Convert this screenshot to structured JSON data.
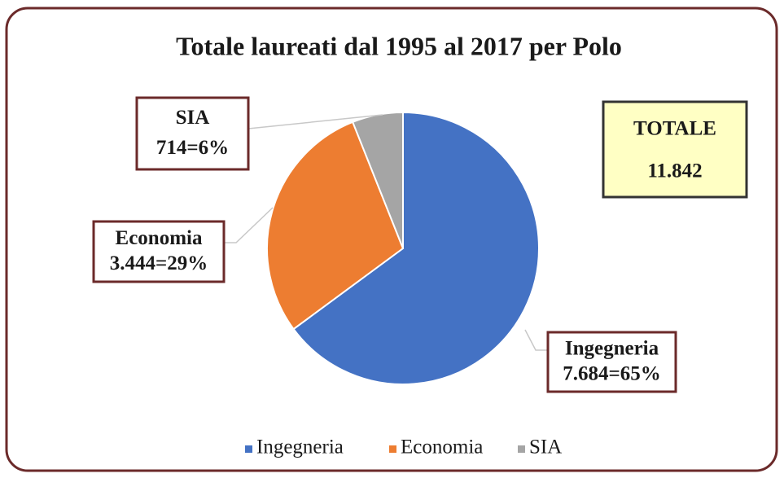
{
  "chart_data": {
    "type": "pie",
    "title": "Totale laureati dal 1995 al 2017 per Polo",
    "categories": [
      "Ingegneria",
      "Economia",
      "SIA"
    ],
    "values": [
      7684,
      3444,
      714
    ],
    "value_labels": [
      "7.684=65%",
      "3.444=29%",
      "714=6%"
    ],
    "colors": [
      "#4472c4",
      "#ed7d31",
      "#a5a5a5"
    ],
    "legend": "bottom",
    "annotations": {
      "label": "TOTALE",
      "value": "11.842"
    }
  }
}
